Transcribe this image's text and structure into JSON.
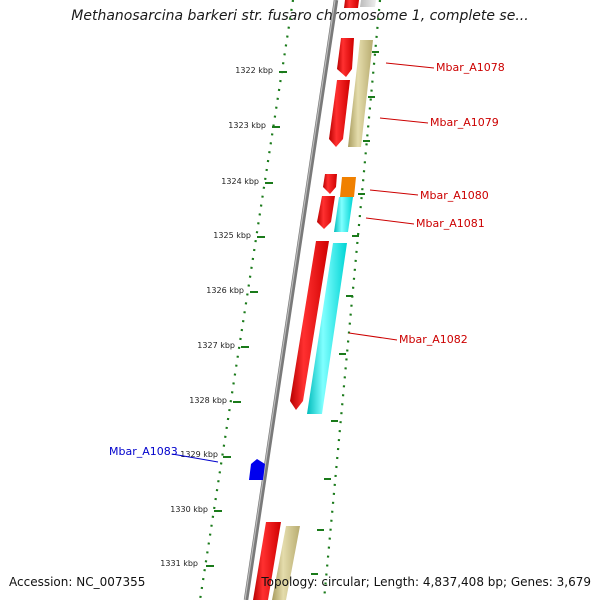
{
  "title": "Methanosarcina barkeri str. fusaro chromosome 1, complete se...",
  "ticks": [
    {
      "label": "1322 kbp"
    },
    {
      "label": "1323 kbp"
    },
    {
      "label": "1324 kbp"
    },
    {
      "label": "1325 kbp"
    },
    {
      "label": "1326 kbp"
    },
    {
      "label": "1327 kbp"
    },
    {
      "label": "1328 kbp"
    },
    {
      "label": "1329 kbp"
    },
    {
      "label": "1330 kbp"
    },
    {
      "label": "1331 kbp"
    }
  ],
  "genes": [
    {
      "name": "Mbar_A1078",
      "color": "#cc0000"
    },
    {
      "name": "Mbar_A1079",
      "color": "#cc0000"
    },
    {
      "name": "Mbar_A1080",
      "color": "#cc0000"
    },
    {
      "name": "Mbar_A1081",
      "color": "#cc0000"
    },
    {
      "name": "Mbar_A1082",
      "color": "#cc0000"
    },
    {
      "name": "Mbar_A1083",
      "color": "#0000cc"
    }
  ],
  "colors": {
    "backbone": "#808080",
    "feature_red": "#ee0000",
    "feature_orange": "#f08000",
    "feature_cyan": "#00e8e8",
    "feature_tan": "#c8bc7e",
    "feature_blue": "#0000ee",
    "tick_green": "#1a7a1a"
  },
  "footer": {
    "accession": "Accession: NC_007355",
    "stats": "Topology: circular; Length: 4,837,408 bp; Genes: 3,679"
  }
}
